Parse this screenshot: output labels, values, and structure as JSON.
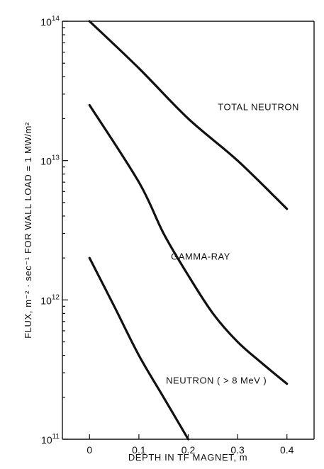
{
  "chart_data": {
    "type": "line",
    "xlabel": "DEPTH IN TF MAGNET, m",
    "ylabel": "FLUX, m⁻² · sec⁻¹  FOR WALL LOAD = 1 MW/m²",
    "xlim": [
      -0.055,
      0.455
    ],
    "ylim": [
      100000000000.0,
      100000000000000.0
    ],
    "y_scale": "log",
    "grid": false,
    "legend": "none",
    "x_ticks": [
      {
        "value": 0.0,
        "label": "0"
      },
      {
        "value": 0.1,
        "label": "0.1"
      },
      {
        "value": 0.2,
        "label": "0.2"
      },
      {
        "value": 0.3,
        "label": "0.3"
      },
      {
        "value": 0.4,
        "label": "0.4"
      }
    ],
    "y_ticks": [
      {
        "value": 100000000000.0,
        "base": "10",
        "exp": "11"
      },
      {
        "value": 1000000000000.0,
        "base": "10",
        "exp": "12"
      },
      {
        "value": 10000000000000.0,
        "base": "10",
        "exp": "13"
      },
      {
        "value": 100000000000000.0,
        "base": "10",
        "exp": "14"
      }
    ],
    "series": [
      {
        "name": "TOTAL NEUTRON",
        "x": [
          0.0,
          0.1,
          0.2,
          0.3,
          0.4
        ],
        "y": [
          100000000000000.0,
          46000000000000.0,
          20000000000000.0,
          10000000000000.0,
          4500000000000.0
        ]
      },
      {
        "name": "GAMMA-RAY",
        "x": [
          0.0,
          0.1,
          0.15,
          0.2,
          0.25,
          0.3,
          0.35,
          0.4
        ],
        "y": [
          25000000000000.0,
          7000000000000.0,
          3000000000000.0,
          1500000000000.0,
          800000000000.0,
          500000000000.0,
          350000000000.0,
          250000000000.0
        ]
      },
      {
        "name": "NEUTRON ( > 8 MeV )",
        "x": [
          0.0,
          0.05,
          0.1,
          0.15,
          0.2
        ],
        "y": [
          2000000000000.0,
          900000000000.0,
          400000000000.0,
          200000000000.0,
          100000000000.0
        ]
      }
    ]
  }
}
